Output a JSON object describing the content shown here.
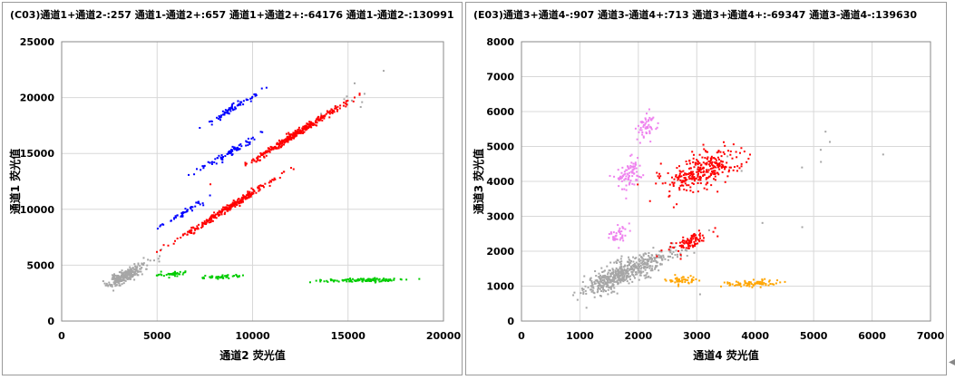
{
  "chart_data": [
    {
      "type": "scatter",
      "title": "(C03)通道1+通道2-:257   通道1-通道2+:657   通道1+通道2+:-64176   通道1-通道2-:130991",
      "xlabel": "通道2 荧光值",
      "ylabel": "通道1 荧光值",
      "xlim": [
        0,
        20000
      ],
      "ylim": [
        0,
        25000
      ],
      "xticks": [
        0,
        5000,
        10000,
        15000,
        20000
      ],
      "yticks": [
        0,
        5000,
        10000,
        15000,
        20000,
        25000
      ],
      "grid": true,
      "clusters": [
        {
          "color": "#a6a6a6",
          "center": [
            3300,
            4000
          ],
          "spread": [
            420,
            280
          ],
          "slope": 0.65,
          "count": 260
        },
        {
          "color": "#a6a6a6",
          "center": [
            4900,
            5600
          ],
          "spread": [
            400,
            300
          ],
          "slope": 0.6,
          "count": 8
        },
        {
          "color": "#a6a6a6",
          "center": [
            15000,
            19500
          ],
          "spread": [
            900,
            500
          ],
          "slope": 0.5,
          "count": 10
        },
        {
          "color": "#ff0000",
          "center": [
            12300,
            16800
          ],
          "spread": [
            1300,
            160
          ],
          "slope": 0.85,
          "count": 330
        },
        {
          "color": "#ff0000",
          "center": [
            8600,
            10000
          ],
          "spread": [
            1350,
            150
          ],
          "slope": 0.85,
          "count": 270
        },
        {
          "color": "#0000ff",
          "center": [
            8800,
            18900
          ],
          "spread": [
            700,
            160
          ],
          "slope": 0.8,
          "count": 70
        },
        {
          "color": "#0000ff",
          "center": [
            8800,
            15100
          ],
          "spread": [
            800,
            160
          ],
          "slope": 0.8,
          "count": 80
        },
        {
          "color": "#0000ff",
          "center": [
            6400,
            9700
          ],
          "spread": [
            650,
            150
          ],
          "slope": 0.85,
          "count": 45
        },
        {
          "color": "#00cc00",
          "center": [
            5700,
            4200
          ],
          "spread": [
            450,
            100
          ],
          "slope": 0.1,
          "count": 35
        },
        {
          "color": "#00cc00",
          "center": [
            8300,
            3950
          ],
          "spread": [
            600,
            90
          ],
          "slope": 0.05,
          "count": 45
        },
        {
          "color": "#00cc00",
          "center": [
            15700,
            3650
          ],
          "spread": [
            1200,
            80
          ],
          "slope": 0.02,
          "count": 110
        }
      ]
    },
    {
      "type": "scatter",
      "title": "(E03)通道3+通道4-:907   通道3-通道4+:713   通道3+通道4+:-69347   通道3-通道4-:139630",
      "xlabel": "通道4 荧光值",
      "ylabel": "通道3 荧光值",
      "xlim": [
        0,
        7000
      ],
      "ylim": [
        0,
        8000
      ],
      "xticks": [
        0,
        1000,
        2000,
        3000,
        4000,
        5000,
        6000,
        7000
      ],
      "yticks": [
        0,
        1000,
        2000,
        3000,
        4000,
        5000,
        6000,
        7000,
        8000
      ],
      "grid": true,
      "clusters": [
        {
          "color": "#a6a6a6",
          "center": [
            1700,
            1350
          ],
          "spread": [
            330,
            170
          ],
          "slope": 0.6,
          "count": 480
        },
        {
          "color": "#a6a6a6",
          "center": [
            2300,
            1700
          ],
          "spread": [
            250,
            170
          ],
          "slope": 0.6,
          "count": 70
        },
        {
          "color": "#a6a6a6",
          "center": [
            4500,
            4000
          ],
          "spread": [
            900,
            1200
          ],
          "slope": 0.2,
          "count": 12
        },
        {
          "color": "#ff0000",
          "center": [
            3100,
            4300
          ],
          "spread": [
            330,
            240
          ],
          "slope": 0.5,
          "count": 300
        },
        {
          "color": "#ff0000",
          "center": [
            2900,
            2280
          ],
          "spread": [
            180,
            120
          ],
          "slope": 0.5,
          "count": 90
        },
        {
          "color": "#ee82ee",
          "center": [
            1850,
            4250
          ],
          "spread": [
            110,
            230
          ],
          "slope": 0.3,
          "count": 85
        },
        {
          "color": "#ee82ee",
          "center": [
            2150,
            5550
          ],
          "spread": [
            90,
            170
          ],
          "slope": 0.3,
          "count": 55
        },
        {
          "color": "#ee82ee",
          "center": [
            1650,
            2450
          ],
          "spread": [
            90,
            120
          ],
          "slope": 0.3,
          "count": 40
        },
        {
          "color": "#ffa500",
          "center": [
            2750,
            1160
          ],
          "spread": [
            140,
            60
          ],
          "slope": 0.05,
          "count": 45
        },
        {
          "color": "#ffa500",
          "center": [
            3900,
            1070
          ],
          "spread": [
            250,
            60
          ],
          "slope": 0.05,
          "count": 70
        }
      ]
    }
  ],
  "ui": {
    "scroll_hint_icon": "left-arrow-icon"
  }
}
